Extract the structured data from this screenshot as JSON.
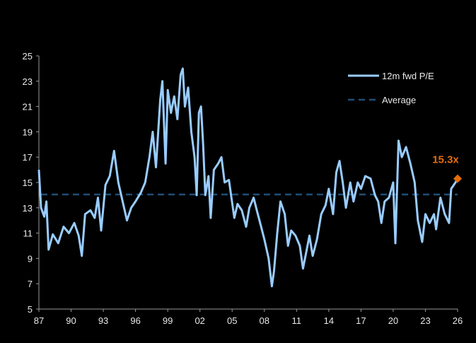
{
  "chart_data": {
    "type": "line",
    "title": "",
    "xlabel": "",
    "ylabel": "",
    "ylim": [
      5,
      25
    ],
    "xlim": [
      1987,
      2026
    ],
    "y_ticks": [
      "5",
      "7",
      "9",
      "11",
      "13",
      "15",
      "17",
      "19",
      "21",
      "23",
      "25"
    ],
    "x_ticks": [
      "87",
      "90",
      "93",
      "96",
      "99",
      "02",
      "05",
      "08",
      "11",
      "14",
      "17",
      "20",
      "23",
      "26"
    ],
    "grid": false,
    "legend_position": "top-right",
    "colors": {
      "pe": "#99ccff",
      "average": "#1f4e79",
      "annotation": "#e46c0a"
    },
    "series": [
      {
        "name": "12m fwd P/E",
        "x": [
          1987.0,
          1987.2,
          1987.5,
          1987.7,
          1987.9,
          1988.3,
          1988.8,
          1989.3,
          1989.8,
          1990.3,
          1990.7,
          1991.0,
          1991.3,
          1991.8,
          1992.2,
          1992.5,
          1992.8,
          1993.2,
          1993.6,
          1994.0,
          1994.4,
          1994.8,
          1995.2,
          1995.6,
          1996.0,
          1996.5,
          1996.9,
          1997.3,
          1997.6,
          1997.9,
          1998.3,
          1998.5,
          1998.8,
          1999.0,
          1999.3,
          1999.6,
          1999.9,
          2000.2,
          2000.4,
          2000.6,
          2000.9,
          2001.2,
          2001.5,
          2001.7,
          2001.9,
          2002.1,
          2002.3,
          2002.5,
          2002.8,
          2003.0,
          2003.3,
          2003.7,
          2004.0,
          2004.3,
          2004.7,
          2004.9,
          2005.2,
          2005.5,
          2005.9,
          2006.3,
          2006.6,
          2007.0,
          2007.3,
          2007.7,
          2008.0,
          2008.4,
          2008.7,
          2008.9,
          2009.2,
          2009.5,
          2009.9,
          2010.2,
          2010.5,
          2010.9,
          2011.3,
          2011.6,
          2011.9,
          2012.2,
          2012.5,
          2012.9,
          2013.3,
          2013.7,
          2014.0,
          2014.4,
          2014.7,
          2015.0,
          2015.3,
          2015.6,
          2016.0,
          2016.3,
          2016.7,
          2017.0,
          2017.4,
          2017.9,
          2018.3,
          2018.6,
          2018.9,
          2019.2,
          2019.6,
          2020.0,
          2020.2,
          2020.5,
          2020.8,
          2021.2,
          2021.6,
          2022.0,
          2022.3,
          2022.7,
          2023.0,
          2023.4,
          2023.8,
          2024.0,
          2024.4,
          2024.8,
          2025.2,
          2025.4,
          2025.8,
          2026.0
        ],
        "values": [
          16,
          13,
          12.3,
          13.5,
          9.7,
          10.9,
          10.2,
          11.5,
          11,
          11.8,
          10.8,
          9.2,
          12.5,
          12.8,
          12.2,
          13.8,
          11.2,
          14.8,
          15.5,
          17.5,
          15,
          13.5,
          12,
          13,
          13.5,
          14.2,
          15,
          17,
          19,
          16.2,
          21.5,
          23,
          16.5,
          22.3,
          20.5,
          21.8,
          20,
          23.5,
          24,
          21,
          22.5,
          19,
          17,
          14,
          20.5,
          21,
          18,
          14,
          15.5,
          12.2,
          16,
          16.5,
          17,
          15,
          15.2,
          14,
          12.2,
          13.3,
          12.8,
          11.5,
          13,
          13.8,
          12.8,
          11.5,
          10.5,
          9,
          6.8,
          8,
          11,
          13.5,
          12.5,
          10,
          11.2,
          10.8,
          10,
          8.2,
          9.5,
          10.8,
          9.2,
          10.5,
          12.5,
          13.2,
          14.5,
          12.5,
          15.8,
          16.7,
          15,
          13,
          15,
          13.5,
          15,
          14.5,
          15.5,
          15.3,
          14,
          13.5,
          11.8,
          13.5,
          13.8,
          15,
          10.2,
          18.3,
          17,
          17.8,
          16.5,
          15,
          12,
          10.3,
          12.5,
          11.8,
          12.5,
          11.3,
          13.8,
          12.5,
          11.8,
          14.5,
          15,
          15.3
        ]
      },
      {
        "name": "Average",
        "value": 14.05
      }
    ],
    "annotations": [
      {
        "text": "15.3x",
        "x": 2026.0,
        "y": 15.3
      }
    ]
  }
}
